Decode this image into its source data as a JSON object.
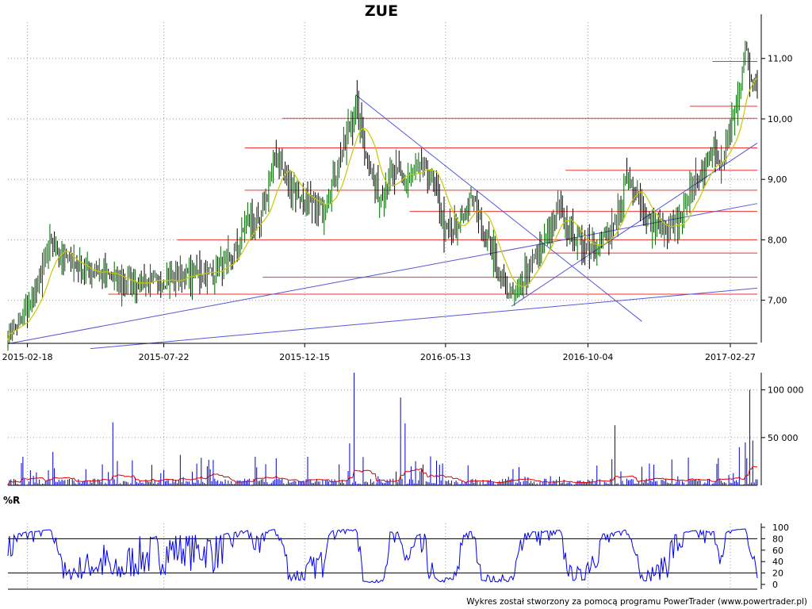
{
  "chart_data": [
    {
      "type": "candlestick",
      "title": "ZUE",
      "x_tick_labels": [
        "2015-02-18",
        "2015-07-22",
        "2015-12-15",
        "2016-05-13",
        "2016-10-04",
        "2017-02-27"
      ],
      "y_tick_labels": [
        "11,00",
        "10,00",
        "9,00",
        "8,00",
        "7,00"
      ],
      "y_ticks": [
        11,
        10,
        9,
        8,
        7
      ],
      "ylim": [
        6.3,
        11.6
      ],
      "grid": true,
      "series": [
        {
          "name": "",
          "style": "price-bars",
          "color": "#000000",
          "keypoints": [
            [
              0,
              6.45
            ],
            [
              10,
              6.7
            ],
            [
              20,
              7.2
            ],
            [
              28,
              7.95
            ],
            [
              35,
              7.75
            ],
            [
              50,
              7.5
            ],
            [
              65,
              7.45
            ],
            [
              75,
              7.3
            ],
            [
              90,
              7.3
            ],
            [
              110,
              7.35
            ],
            [
              125,
              7.45
            ],
            [
              140,
              7.5
            ],
            [
              150,
              7.7
            ],
            [
              160,
              8.35
            ],
            [
              168,
              8.2
            ],
            [
              178,
              9.4
            ],
            [
              188,
              8.9
            ],
            [
              200,
              8.6
            ],
            [
              210,
              8.5
            ],
            [
              225,
              9.6
            ],
            [
              232,
              10.2
            ],
            [
              240,
              9.3
            ],
            [
              248,
              8.7
            ],
            [
              256,
              9.1
            ],
            [
              265,
              9.0
            ],
            [
              278,
              9.2
            ],
            [
              285,
              8.9
            ],
            [
              292,
              8.1
            ],
            [
              300,
              8.2
            ],
            [
              310,
              8.7
            ],
            [
              320,
              8.0
            ],
            [
              330,
              7.3
            ],
            [
              336,
              7.05
            ],
            [
              345,
              7.45
            ],
            [
              355,
              7.8
            ],
            [
              368,
              8.5
            ],
            [
              375,
              8.1
            ],
            [
              385,
              7.9
            ],
            [
              395,
              8.0
            ],
            [
              405,
              8.2
            ],
            [
              412,
              9.0
            ],
            [
              420,
              8.8
            ],
            [
              428,
              8.25
            ],
            [
              440,
              8.2
            ],
            [
              450,
              8.35
            ],
            [
              458,
              8.9
            ],
            [
              468,
              9.25
            ],
            [
              472,
              9.5
            ],
            [
              477,
              9.2
            ],
            [
              482,
              9.9
            ],
            [
              488,
              10.4
            ],
            [
              492,
              11.2
            ],
            [
              496,
              10.6
            ],
            [
              500,
              10.5
            ]
          ]
        },
        {
          "name": "",
          "style": "moving-average",
          "color": "#c8c800",
          "period": 15
        }
      ],
      "horizontal_levels": [
        {
          "value": 10.95,
          "from": 470,
          "to": 500
        },
        {
          "value": 10.21,
          "from": 455,
          "to": 500
        },
        {
          "value": 10.01,
          "from": 183,
          "to": 500
        },
        {
          "value": 9.52,
          "from": 158,
          "to": 500
        },
        {
          "value": 9.15,
          "from": 372,
          "to": 500
        },
        {
          "value": 8.82,
          "from": 158,
          "to": 500
        },
        {
          "value": 8.47,
          "from": 268,
          "to": 500
        },
        {
          "value": 8.0,
          "from": 113,
          "to": 500
        },
        {
          "value": 7.78,
          "from": 360,
          "to": 500
        },
        {
          "value": 7.38,
          "from": 170,
          "to": 500
        },
        {
          "value": 7.1,
          "from": 67,
          "to": 500
        }
      ],
      "trend_lines": [
        {
          "from": [
            0,
            6.28
          ],
          "to": [
            500,
            8.6
          ]
        },
        {
          "from": [
            55,
            6.2
          ],
          "to": [
            500,
            7.2
          ]
        },
        {
          "from": [
            232,
            10.4
          ],
          "to": [
            423,
            6.65
          ]
        },
        {
          "from": [
            336,
            6.9
          ],
          "to": [
            500,
            9.6
          ]
        }
      ]
    },
    {
      "type": "bar",
      "y_tick_labels": [
        "100 000",
        "50 000"
      ],
      "y_ticks": [
        100000,
        50000
      ],
      "ylim": [
        0,
        118000
      ],
      "series": [
        {
          "name": "",
          "style": "volume-bars",
          "color": "#0000cc",
          "spikes": [
            [
              10,
              30000
            ],
            [
              30,
              35000
            ],
            [
              70,
              66000
            ],
            [
              165,
              30000
            ],
            [
              228,
              44000
            ],
            [
              231,
              118000
            ],
            [
              262,
              92000
            ],
            [
              265,
              65000
            ],
            [
              405,
              63000
            ],
            [
              488,
              40000
            ],
            [
              492,
              45000
            ],
            [
              495,
              100000
            ],
            [
              497,
              47000
            ]
          ]
        },
        {
          "name": "",
          "style": "volume-average",
          "color": "#dd0000"
        }
      ]
    },
    {
      "type": "line",
      "title": "%R",
      "y_tick_labels": [
        "100",
        "80",
        "60",
        "40",
        "20",
        "0"
      ],
      "y_ticks": [
        100,
        80,
        60,
        40,
        20,
        0
      ],
      "ylim": [
        0,
        100
      ],
      "reference_lines": [
        80,
        20
      ],
      "series": [
        {
          "name": "",
          "color": "#0000ee"
        }
      ]
    }
  ],
  "footer": "Wykres został stworzony za pomocą programu PowerTrader (www.powertrader.pl)"
}
